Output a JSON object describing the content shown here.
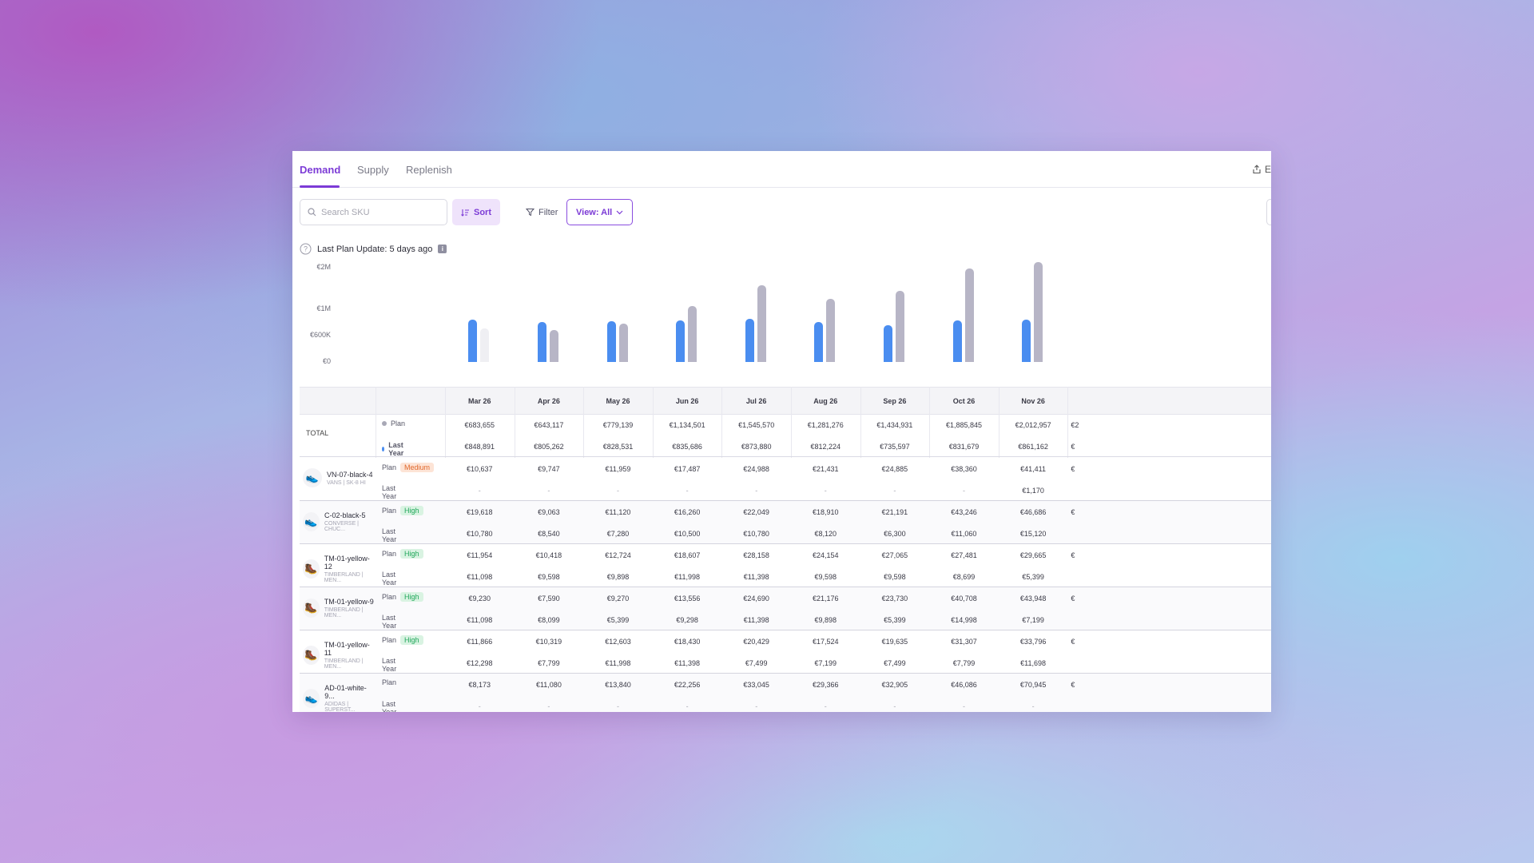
{
  "tabs": [
    {
      "label": "Demand",
      "active": true
    },
    {
      "label": "Supply",
      "active": false
    },
    {
      "label": "Replenish",
      "active": false
    }
  ],
  "export_label": "E",
  "toolbar": {
    "search_placeholder": "Search SKU",
    "sort_label": "Sort",
    "filter_label": "Filter",
    "view_label": "View: All"
  },
  "last_plan_update": "Last Plan Update: 5 days ago",
  "colors": {
    "accent": "#7c3bd6",
    "plan_bar": "#b7b5c6",
    "last_year_bar": "#4a8df0",
    "medium": "#e0682c",
    "high": "#21a75b"
  },
  "chart_data": {
    "type": "bar",
    "categories": [
      "Mar 26",
      "Apr 26",
      "May 26",
      "Jun 26",
      "Jul 26",
      "Aug 26",
      "Sep 26",
      "Oct 26",
      "Nov 26"
    ],
    "series": [
      {
        "name": "Last Year",
        "values": [
          848891,
          805262,
          828531,
          835686,
          873880,
          812224,
          735597,
          831679,
          861162
        ]
      },
      {
        "name": "Plan",
        "values": [
          683655,
          643117,
          779139,
          1134501,
          1545570,
          1281276,
          1434931,
          1885845,
          2012957
        ]
      }
    ],
    "y_ticks": [
      "€2M",
      "€1M",
      "€600K",
      "€0"
    ],
    "ylim": [
      0,
      2000000
    ]
  },
  "table": {
    "months": [
      "Mar 26",
      "Apr 26",
      "May 26",
      "Jun 26",
      "Jul 26",
      "Aug 26",
      "Sep 26",
      "Oct 26",
      "Nov 26"
    ],
    "total": {
      "label": "TOTAL",
      "plan_label": "Plan",
      "last_year_label": "Last Year",
      "plan": [
        "€683,655",
        "€643,117",
        "€779,139",
        "€1,134,501",
        "€1,545,570",
        "€1,281,276",
        "€1,434,931",
        "€1,885,845",
        "€2,012,957"
      ],
      "last_year": [
        "€848,891",
        "€805,262",
        "€828,531",
        "€835,686",
        "€873,880",
        "€812,224",
        "€735,597",
        "€831,679",
        "€861,162"
      ],
      "overflow_plan": "€2",
      "overflow_last_year": "€"
    },
    "skus": [
      {
        "name": "VN-07-black-4",
        "sub": "VANS | SK-8 HI",
        "icon": "shoe-icon",
        "priority": "Medium",
        "plan": [
          "€10,637",
          "€9,747",
          "€11,959",
          "€17,487",
          "€24,988",
          "€21,431",
          "€24,885",
          "€38,360",
          "€41,411"
        ],
        "last_year": [
          "-",
          "-",
          "-",
          "-",
          "-",
          "-",
          "-",
          "-",
          "€1,170"
        ]
      },
      {
        "name": "C-02-black-5",
        "sub": "CONVERSE | CHUC...",
        "icon": "shoe-icon",
        "priority": "High",
        "plan": [
          "€19,618",
          "€9,063",
          "€11,120",
          "€16,260",
          "€22,049",
          "€18,910",
          "€21,191",
          "€43,246",
          "€46,686"
        ],
        "last_year": [
          "€10,780",
          "€8,540",
          "€7,280",
          "€10,500",
          "€10,780",
          "€8,120",
          "€6,300",
          "€11,060",
          "€15,120"
        ]
      },
      {
        "name": "TM-01-yellow-12",
        "sub": "TIMBERLAND | MEN...",
        "icon": "boot-icon",
        "priority": "High",
        "plan": [
          "€11,954",
          "€10,418",
          "€12,724",
          "€18,607",
          "€28,158",
          "€24,154",
          "€27,065",
          "€27,481",
          "€29,665"
        ],
        "last_year": [
          "€11,098",
          "€9,598",
          "€9,898",
          "€11,998",
          "€11,398",
          "€9,598",
          "€9,598",
          "€8,699",
          "€5,399"
        ]
      },
      {
        "name": "TM-01-yellow-9",
        "sub": "TIMBERLAND | MEN...",
        "icon": "boot-icon",
        "priority": "High",
        "plan": [
          "€9,230",
          "€7,590",
          "€9,270",
          "€13,556",
          "€24,690",
          "€21,176",
          "€23,730",
          "€40,708",
          "€43,948"
        ],
        "last_year": [
          "€11,098",
          "€8,099",
          "€5,399",
          "€9,298",
          "€11,398",
          "€9,898",
          "€5,399",
          "€14,998",
          "€7,199"
        ]
      },
      {
        "name": "TM-01-yellow-11",
        "sub": "TIMBERLAND | MEN...",
        "icon": "boot-icon",
        "priority": "High",
        "plan": [
          "€11,866",
          "€10,319",
          "€12,603",
          "€18,430",
          "€20,429",
          "€17,524",
          "€19,635",
          "€31,307",
          "€33,796"
        ],
        "last_year": [
          "€12,298",
          "€7,799",
          "€11,998",
          "€11,398",
          "€7,499",
          "€7,199",
          "€7,499",
          "€7,799",
          "€11,698"
        ]
      },
      {
        "name": "AD-01-white-9...",
        "sub": "ADIDAS | SUPERST...",
        "icon": "sneaker-icon",
        "priority": "",
        "plan": [
          "€8,173",
          "€11,080",
          "€13,840",
          "€22,256",
          "€33,045",
          "€29,366",
          "€32,905",
          "€46,086",
          "€70,945"
        ],
        "last_year": [
          "-",
          "-",
          "-",
          "-",
          "-",
          "-",
          "-",
          "-",
          "-"
        ]
      }
    ],
    "overflow_char": "€"
  }
}
